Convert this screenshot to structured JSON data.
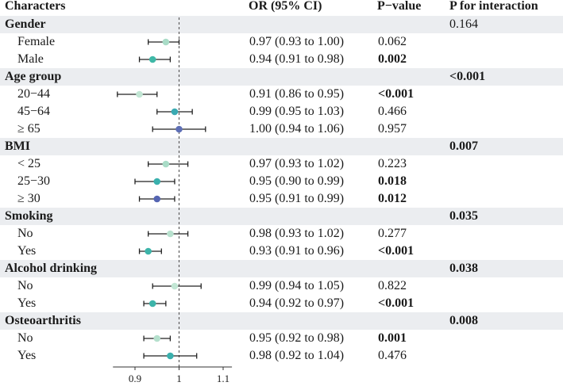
{
  "headers": {
    "characters": "Characters",
    "or": "OR (95% CI)",
    "pvalue": "P−value",
    "pint": "P for interaction"
  },
  "rows": [
    {
      "label": "Gender",
      "group": true,
      "pint": "0.164",
      "pint_bold": false
    },
    {
      "label": "Female",
      "or_text": "0.97 (0.93 to 1.00)",
      "p": "0.062",
      "p_bold": false
    },
    {
      "label": "Male",
      "or_text": "0.94 (0.91 to 0.98)",
      "p": "0.002",
      "p_bold": true
    },
    {
      "label": "Age group",
      "group": true,
      "pint": "<0.001",
      "pint_bold": true
    },
    {
      "label": "20−44",
      "or_text": "0.91 (0.86 to 0.95)",
      "p": "<0.001",
      "p_bold": true
    },
    {
      "label": "45−64",
      "or_text": "0.99 (0.95 to 1.03)",
      "p": "0.466",
      "p_bold": false
    },
    {
      "label": "≥ 65",
      "or_text": "1.00 (0.94 to 1.06)",
      "p": "0.957",
      "p_bold": false
    },
    {
      "label": "BMI",
      "group": true,
      "pint": "0.007",
      "pint_bold": true
    },
    {
      "label": "< 25",
      "or_text": "0.97 (0.93 to 1.02)",
      "p": "0.223",
      "p_bold": false
    },
    {
      "label": "25−30",
      "or_text": "0.95 (0.90 to 0.99)",
      "p": "0.018",
      "p_bold": true
    },
    {
      "label": "≥ 30",
      "or_text": "0.95 (0.91 to 0.99)",
      "p": "0.012",
      "p_bold": true
    },
    {
      "label": "Smoking",
      "group": true,
      "pint": "0.035",
      "pint_bold": true
    },
    {
      "label": "No",
      "or_text": "0.98 (0.93 to 1.02)",
      "p": "0.277",
      "p_bold": false
    },
    {
      "label": "Yes",
      "or_text": "0.93 (0.91 to 0.96)",
      "p": "<0.001",
      "p_bold": true
    },
    {
      "label": "Alcohol drinking",
      "group": true,
      "pint": "0.038",
      "pint_bold": true
    },
    {
      "label": "No",
      "or_text": "0.99 (0.94 to 1.05)",
      "p": "0.822",
      "p_bold": false
    },
    {
      "label": "Yes",
      "or_text": "0.94 (0.92 to 0.97)",
      "p": "<0.001",
      "p_bold": true
    },
    {
      "label": "Osteoarthritis",
      "group": true,
      "pint": "0.008",
      "pint_bold": true
    },
    {
      "label": "No",
      "or_text": "0.95 (0.92 to 0.98)",
      "p": "0.001",
      "p_bold": true
    },
    {
      "label": "Yes",
      "or_text": "0.98 (0.92 to 1.04)",
      "p": "0.476",
      "p_bold": false
    }
  ],
  "chart_data": {
    "type": "forest",
    "reference_line": 1,
    "xlim": [
      0.85,
      1.12
    ],
    "xticks": [
      0.9,
      1,
      1.1
    ],
    "xtick_labels": [
      "0.9",
      "1",
      "1.1"
    ],
    "points": [
      {
        "row": 1,
        "or": 0.97,
        "lo": 0.93,
        "hi": 1.0,
        "color": "#a9dcc7"
      },
      {
        "row": 2,
        "or": 0.94,
        "lo": 0.91,
        "hi": 0.98,
        "color": "#3fb8a7"
      },
      {
        "row": 4,
        "or": 0.91,
        "lo": 0.86,
        "hi": 0.95,
        "color": "#c2e6d4"
      },
      {
        "row": 5,
        "or": 0.99,
        "lo": 0.95,
        "hi": 1.03,
        "color": "#3aaab2"
      },
      {
        "row": 6,
        "or": 1.0,
        "lo": 0.94,
        "hi": 1.06,
        "color": "#5e6fb6"
      },
      {
        "row": 8,
        "or": 0.97,
        "lo": 0.93,
        "hi": 1.02,
        "color": "#a9dcc7"
      },
      {
        "row": 9,
        "or": 0.95,
        "lo": 0.9,
        "hi": 0.99,
        "color": "#3ab0ad"
      },
      {
        "row": 10,
        "or": 0.95,
        "lo": 0.91,
        "hi": 0.99,
        "color": "#5565b2"
      },
      {
        "row": 12,
        "or": 0.98,
        "lo": 0.93,
        "hi": 1.02,
        "color": "#b9e2cf"
      },
      {
        "row": 13,
        "or": 0.93,
        "lo": 0.91,
        "hi": 0.96,
        "color": "#3db4a9"
      },
      {
        "row": 15,
        "or": 0.99,
        "lo": 0.94,
        "hi": 1.05,
        "color": "#c2e6d4"
      },
      {
        "row": 16,
        "or": 0.94,
        "lo": 0.92,
        "hi": 0.97,
        "color": "#3db4a9"
      },
      {
        "row": 18,
        "or": 0.95,
        "lo": 0.92,
        "hi": 0.98,
        "color": "#b5e0cd"
      },
      {
        "row": 19,
        "or": 0.98,
        "lo": 0.92,
        "hi": 1.04,
        "color": "#3ab0ad"
      }
    ]
  }
}
